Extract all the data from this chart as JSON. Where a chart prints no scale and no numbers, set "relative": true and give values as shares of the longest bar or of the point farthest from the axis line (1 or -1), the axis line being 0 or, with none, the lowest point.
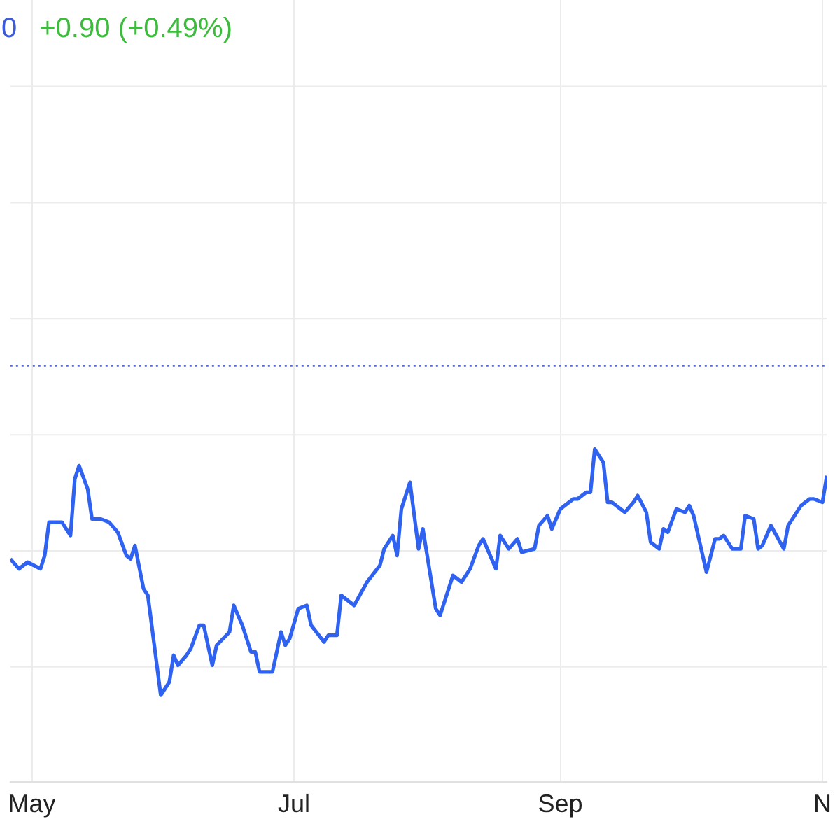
{
  "chart_data": {
    "type": "line",
    "relative": true,
    "annotations": [
      "0",
      "+0.90 (+0.49%)"
    ],
    "x": [
      "--04-26",
      "--04-28",
      "--04-30",
      "--05-03",
      "--05-04",
      "--05-05",
      "--05-08",
      "--05-10",
      "--05-11",
      "--05-12",
      "--05-14",
      "--05-15",
      "--05-17",
      "--05-19",
      "--05-21",
      "--05-23",
      "--05-24",
      "--05-25",
      "--05-27",
      "--05-28",
      "--05-31",
      "--06-02",
      "--06-03",
      "--06-04",
      "--06-06",
      "--06-07",
      "--06-09",
      "--06-10",
      "--06-12",
      "--06-13",
      "--06-16",
      "--06-17",
      "--06-19",
      "--06-21",
      "--06-22",
      "--06-23",
      "--06-26",
      "--06-28",
      "--06-29",
      "--06-30",
      "--07-02",
      "--07-04",
      "--07-05",
      "--07-08",
      "--07-09",
      "--07-11",
      "--07-12",
      "--07-15",
      "--07-18",
      "--07-21",
      "--07-22",
      "--07-24",
      "--07-25",
      "--07-26",
      "--07-28",
      "--07-30",
      "--07-31",
      "--08-03",
      "--08-04",
      "--08-07",
      "--08-09",
      "--08-11",
      "--08-13",
      "--08-14",
      "--08-17",
      "--08-18",
      "--08-20",
      "--08-22",
      "--08-23",
      "--08-26",
      "--08-27",
      "--08-29",
      "--08-30",
      "--09-01",
      "--09-02",
      "--09-04",
      "--09-05",
      "--09-07",
      "--09-08",
      "--09-09",
      "--09-11",
      "--09-12",
      "--09-13",
      "--09-16",
      "--09-18",
      "--09-19",
      "--09-21",
      "--09-22",
      "--09-24",
      "--09-25",
      "--09-26",
      "--09-28",
      "--09-30",
      "--10-01",
      "--10-02",
      "--10-05",
      "--10-07",
      "--10-08",
      "--10-09",
      "--10-11",
      "--10-13",
      "--10-14",
      "--10-16",
      "--10-17",
      "--10-18",
      "--10-20",
      "--10-23",
      "--10-24",
      "--10-25",
      "--10-27",
      "--10-29",
      "--10-30",
      "--11-01",
      "--11-02"
    ],
    "series": [
      {
        "color": "#2f62f0",
        "values": [
          0.67,
          0.64,
          0.66,
          0.64,
          0.68,
          0.78,
          0.78,
          0.74,
          0.91,
          0.95,
          0.88,
          0.79,
          0.79,
          0.78,
          0.75,
          0.68,
          0.67,
          0.71,
          0.58,
          0.56,
          0.26,
          0.3,
          0.38,
          0.35,
          0.38,
          0.4,
          0.47,
          0.47,
          0.35,
          0.41,
          0.45,
          0.53,
          0.47,
          0.39,
          0.39,
          0.33,
          0.33,
          0.45,
          0.41,
          0.43,
          0.52,
          0.53,
          0.47,
          0.42,
          0.44,
          0.44,
          0.56,
          0.53,
          0.6,
          0.65,
          0.7,
          0.74,
          0.68,
          0.82,
          0.9,
          0.7,
          0.76,
          0.52,
          0.5,
          0.62,
          0.6,
          0.64,
          0.71,
          0.73,
          0.64,
          0.74,
          0.7,
          0.73,
          0.69,
          0.7,
          0.77,
          0.8,
          0.76,
          0.82,
          0.83,
          0.85,
          0.85,
          0.87,
          0.87,
          1,
          0.96,
          0.84,
          0.84,
          0.81,
          0.84,
          0.86,
          0.81,
          0.72,
          0.7,
          0.76,
          0.75,
          0.82,
          0.81,
          0.83,
          0.8,
          0.63,
          0.73,
          0.73,
          0.74,
          0.7,
          0.7,
          0.8,
          0.79,
          0.7,
          0.71,
          0.77,
          0.7,
          0.77,
          0.79,
          0.83,
          0.85,
          0.85,
          0.84,
          0.92
        ]
      }
    ],
    "xlim": [
      "--04-26",
      "--11-02"
    ],
    "xticks": [
      {
        "value": "--05-01",
        "label": "May"
      },
      {
        "value": "--07-01",
        "label": "Jul"
      },
      {
        "value": "--09-01",
        "label": "Sep"
      },
      {
        "value": "--11-01",
        "label": "N"
      }
    ],
    "ref_lines": [
      {
        "axis": "y",
        "value": 1.25,
        "color": "#4a6cf7",
        "line_style": "dotted"
      }
    ],
    "grid": true,
    "marker": "none",
    "line_style": "solid"
  }
}
